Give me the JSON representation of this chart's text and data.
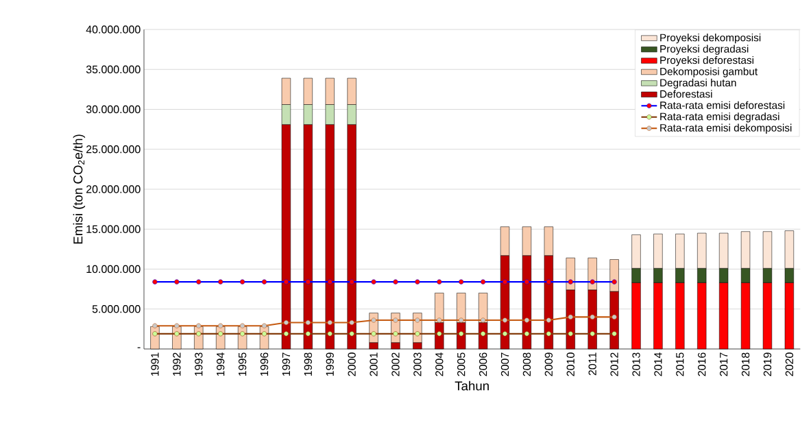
{
  "chart_data": {
    "type": "bar",
    "stacked": true,
    "xlabel": "Tahun",
    "ylabel": "Emisi (ton CO$_{2}$e/th)",
    "categories": [
      "1991",
      "1992",
      "1993",
      "1994",
      "1995",
      "1996",
      "1997",
      "1998",
      "1999",
      "2000",
      "2001",
      "2002",
      "2003",
      "2004",
      "2005",
      "2006",
      "2007",
      "2008",
      "2009",
      "2010",
      "2011",
      "2012",
      "2013",
      "2014",
      "2015",
      "2016",
      "2017",
      "2018",
      "2019",
      "2020"
    ],
    "ylim": [
      0,
      40000000
    ],
    "yticks": [
      {
        "value": 0,
        "label": "-"
      },
      {
        "value": 5000000,
        "label": "5.000.000"
      },
      {
        "value": 10000000,
        "label": "10.000.000"
      },
      {
        "value": 15000000,
        "label": "15.000.000"
      },
      {
        "value": 20000000,
        "label": "20.000.000"
      },
      {
        "value": 25000000,
        "label": "25.000.000"
      },
      {
        "value": 30000000,
        "label": "30.000.000"
      },
      {
        "value": 35000000,
        "label": "35.000.000"
      },
      {
        "value": 40000000,
        "label": "40.000.000"
      }
    ],
    "grid": "y",
    "legend": "top right",
    "marker": "circle",
    "series": [
      {
        "name": "Deforestasi",
        "color": "#c00000",
        "values": [
          null,
          null,
          null,
          null,
          null,
          null,
          28100000,
          28100000,
          28100000,
          28100000,
          800000,
          800000,
          800000,
          3300000,
          3300000,
          3300000,
          11700000,
          11700000,
          11700000,
          7400000,
          7400000,
          7200000,
          null,
          null,
          null,
          null,
          null,
          null,
          null,
          null
        ]
      },
      {
        "name": "Degradasi hutan",
        "color": "#c5e0b4",
        "values": [
          null,
          null,
          null,
          null,
          null,
          null,
          2500000,
          2500000,
          2500000,
          2500000,
          null,
          null,
          null,
          null,
          null,
          null,
          null,
          null,
          null,
          null,
          null,
          null,
          null,
          null,
          null,
          null,
          null,
          null,
          null,
          null
        ]
      },
      {
        "name": "Dekomposisi gambut",
        "color": "#f8cbad",
        "values": [
          2800000,
          2800000,
          2800000,
          2800000,
          2800000,
          2800000,
          3300000,
          3300000,
          3300000,
          3300000,
          3700000,
          3700000,
          3700000,
          3700000,
          3700000,
          3700000,
          3600000,
          3600000,
          3600000,
          4000000,
          4000000,
          4000000,
          null,
          null,
          null,
          null,
          null,
          null,
          null,
          null
        ]
      },
      {
        "name": "Proyeksi deforestasi",
        "color": "#ff0000",
        "values": [
          null,
          null,
          null,
          null,
          null,
          null,
          null,
          null,
          null,
          null,
          null,
          null,
          null,
          null,
          null,
          null,
          null,
          null,
          null,
          null,
          null,
          null,
          8300000,
          8300000,
          8300000,
          8300000,
          8300000,
          8300000,
          8300000,
          8300000
        ]
      },
      {
        "name": "Proyeksi degradasi",
        "color": "#375623",
        "values": [
          null,
          null,
          null,
          null,
          null,
          null,
          null,
          null,
          null,
          null,
          null,
          null,
          null,
          null,
          null,
          null,
          null,
          null,
          null,
          null,
          null,
          null,
          1800000,
          1800000,
          1800000,
          1800000,
          1800000,
          1800000,
          1800000,
          1800000
        ]
      },
      {
        "name": "Proyeksi dekomposisi",
        "color": "#fbe5d6",
        "values": [
          null,
          null,
          null,
          null,
          null,
          null,
          null,
          null,
          null,
          null,
          null,
          null,
          null,
          null,
          null,
          null,
          null,
          null,
          null,
          null,
          null,
          null,
          4200000,
          4300000,
          4300000,
          4400000,
          4400000,
          4600000,
          4600000,
          4700000
        ]
      },
      {
        "name": "Rata-rata emisi deforestasi",
        "type": "line",
        "color": "#0000ff",
        "values": [
          8400000,
          8400000,
          8400000,
          8400000,
          8400000,
          8400000,
          8400000,
          8400000,
          8400000,
          8400000,
          8400000,
          8400000,
          8400000,
          8400000,
          8400000,
          8400000,
          8400000,
          8400000,
          8400000,
          8400000,
          8400000,
          8400000,
          null,
          null,
          null,
          null,
          null,
          null,
          null,
          null
        ]
      },
      {
        "name": "Rata-rata emisi degradasi",
        "type": "line",
        "color": "#843c0c",
        "values": [
          1900000,
          1900000,
          1900000,
          1900000,
          1900000,
          1900000,
          1900000,
          1900000,
          1900000,
          1900000,
          1900000,
          1900000,
          1900000,
          1900000,
          1900000,
          1900000,
          1900000,
          1900000,
          1900000,
          1900000,
          1900000,
          1900000,
          null,
          null,
          null,
          null,
          null,
          null,
          null,
          null
        ]
      },
      {
        "name": "Rata-rata emisi dekomposisi",
        "type": "line",
        "color": "#c55a11",
        "values": [
          2900000,
          2900000,
          2900000,
          2900000,
          2900000,
          2900000,
          3300000,
          3300000,
          3300000,
          3300000,
          3600000,
          3600000,
          3600000,
          3600000,
          3600000,
          3600000,
          3600000,
          3600000,
          3600000,
          4000000,
          4000000,
          4000000,
          null,
          null,
          null,
          null,
          null,
          null,
          null,
          null
        ]
      }
    ]
  }
}
